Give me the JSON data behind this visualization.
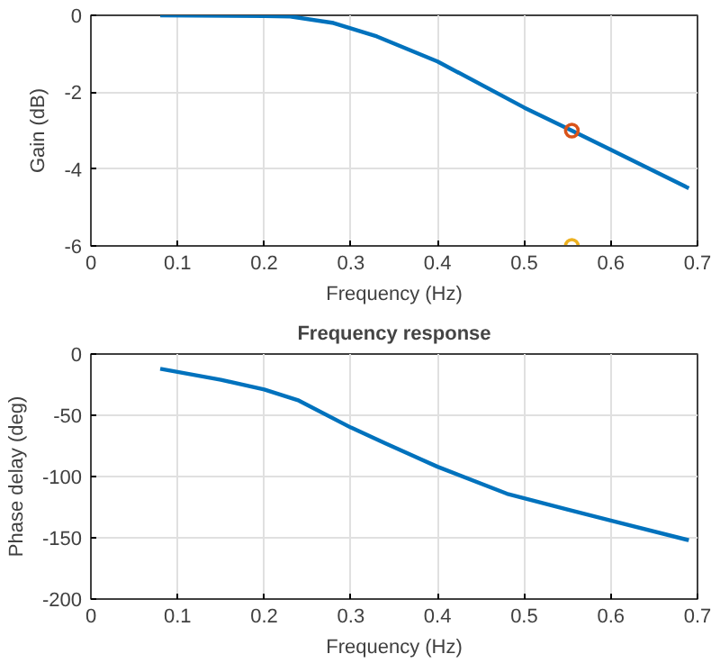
{
  "chart_data": [
    {
      "type": "line",
      "xlabel": "Frequency (Hz)",
      "ylabel": "Gain (dB)",
      "xlim": [
        0,
        0.7
      ],
      "ylim": [
        -6,
        0
      ],
      "xticks": [
        0,
        0.1,
        0.2,
        0.3,
        0.4,
        0.5,
        0.6,
        0.7
      ],
      "yticks": [
        -6,
        -4,
        -2,
        0
      ],
      "grid": true,
      "series": [
        {
          "color": "#0072bd",
          "marker": "none",
          "x": [
            0.08,
            0.2,
            0.23,
            0.28,
            0.33,
            0.4,
            0.5,
            0.555,
            0.6,
            0.69
          ],
          "values": [
            0,
            -0.02,
            -0.03,
            -0.2,
            -0.55,
            -1.2,
            -2.4,
            -3.0,
            -3.5,
            -4.5
          ]
        },
        {
          "type": "scatter",
          "color": "#d95319",
          "marker": "circle",
          "x": [
            0.555
          ],
          "values": [
            -3
          ]
        },
        {
          "type": "scatter",
          "color": "#edb120",
          "marker": "circle",
          "x": [
            0.555
          ],
          "values": [
            -6
          ]
        }
      ]
    },
    {
      "type": "line",
      "title": "Frequency response",
      "xlabel": "Frequency (Hz)",
      "ylabel": "Phase delay (deg)",
      "xlim": [
        0,
        0.7
      ],
      "ylim": [
        -200,
        0
      ],
      "xticks": [
        0,
        0.1,
        0.2,
        0.3,
        0.4,
        0.5,
        0.6,
        0.7
      ],
      "yticks": [
        -200,
        -150,
        -100,
        -50,
        0
      ],
      "grid": true,
      "series": [
        {
          "color": "#0072bd",
          "marker": "none",
          "x": [
            0.08,
            0.15,
            0.2,
            0.24,
            0.3,
            0.34,
            0.4,
            0.48,
            0.55,
            0.6,
            0.69
          ],
          "values": [
            -12,
            -21,
            -29,
            -38,
            -60,
            -73,
            -92,
            -114,
            -127,
            -136,
            -152
          ]
        }
      ]
    }
  ]
}
